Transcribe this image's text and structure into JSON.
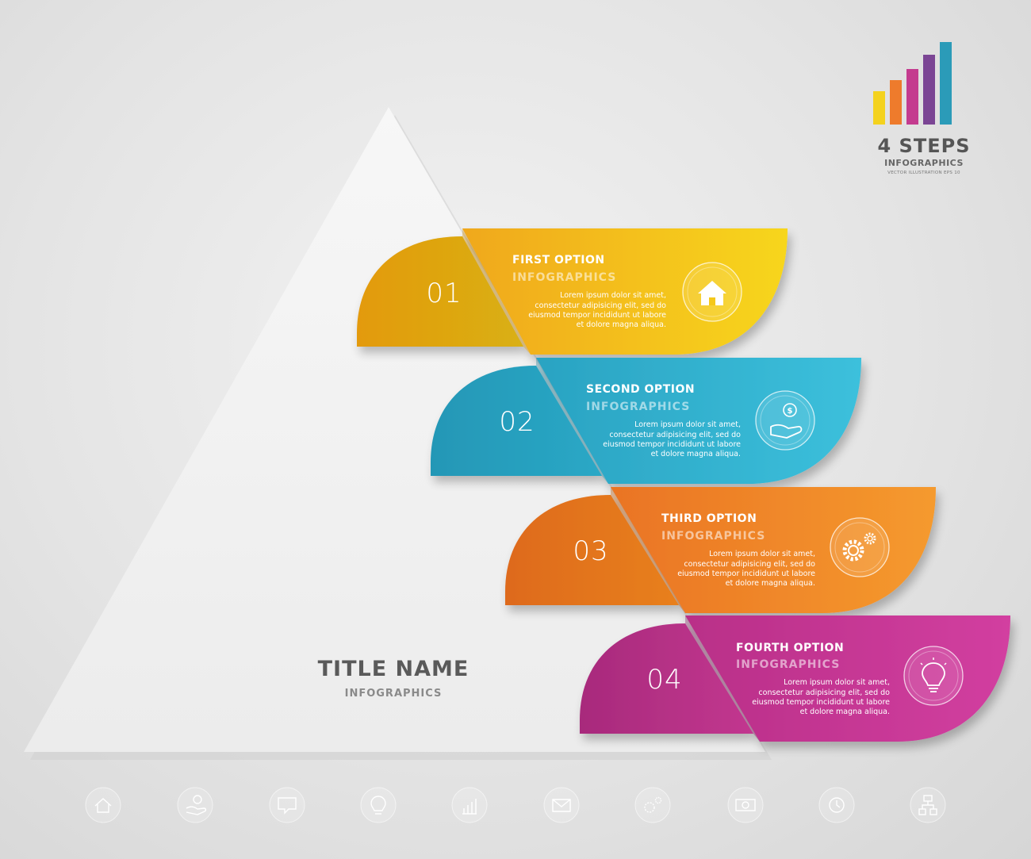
{
  "logo": {
    "title": "4 STEPS",
    "subtitle": "INFOGRAPHICS",
    "small": "VECTOR ILLUSTRATION EPS 10",
    "bar_colors": [
      "#f4d21e",
      "#ee7b2c",
      "#c43b8f",
      "#7b4594",
      "#2b9bb8"
    ]
  },
  "pyramid": {
    "title": "TITLE NAME",
    "subtitle": "INFOGRAPHICS"
  },
  "steps": [
    {
      "number": "01",
      "title": "FIRST OPTION",
      "subtitle": "INFOGRAPHICS",
      "body": [
        "Lorem ipsum dolor sit amet,",
        "consectetur adipisicing elit, sed do",
        "eiusmod tempor incididunt ut labore",
        "et dolore magna aliqua."
      ],
      "icon": "home-icon",
      "color": "#f2bd1a"
    },
    {
      "number": "02",
      "title": "SECOND OPTION",
      "subtitle": "INFOGRAPHICS",
      "body": [
        "Lorem ipsum dolor sit amet,",
        "consectetur adipisicing elit, sed do",
        "eiusmod tempor incididunt ut labore",
        "et dolore magna aliqua."
      ],
      "icon": "money-hand-icon",
      "color": "#35b3cf"
    },
    {
      "number": "03",
      "title": "THIRD OPTION",
      "subtitle": "INFOGRAPHICS",
      "body": [
        "Lorem ipsum dolor sit amet,",
        "consectetur adipisicing elit, sed do",
        "eiusmod tempor incididunt ut labore",
        "et dolore magna aliqua."
      ],
      "icon": "gears-icon",
      "color": "#f08a28"
    },
    {
      "number": "04",
      "title": "FOURTH OPTION",
      "subtitle": "INFOGRAPHICS",
      "body": [
        "Lorem ipsum dolor sit amet,",
        "consectetur adipisicing elit, sed do",
        "eiusmod tempor incididunt ut labore",
        "et dolore magna aliqua."
      ],
      "icon": "lightbulb-icon",
      "color": "#c63a95"
    }
  ],
  "footer_icons": [
    "home-icon",
    "money-hand-icon",
    "speech-bubble-icon",
    "lightbulb-icon",
    "bar-chart-icon",
    "envelope-icon",
    "gears-icon",
    "banknote-icon",
    "clock-icon",
    "network-icon"
  ]
}
